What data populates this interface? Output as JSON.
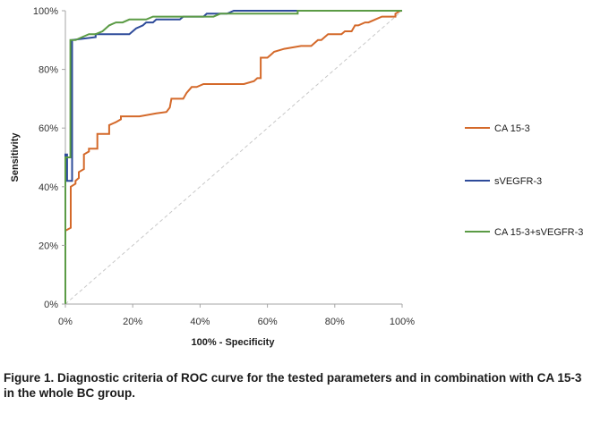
{
  "chart_data": {
    "type": "line",
    "xlabel": "100% - Specificity",
    "ylabel": "Sensitivity",
    "xlim": [
      0,
      100
    ],
    "ylim": [
      0,
      100
    ],
    "x_ticks": [
      "0%",
      "20%",
      "40%",
      "60%",
      "80%",
      "100%"
    ],
    "y_ticks": [
      "0%",
      "20%",
      "40%",
      "60%",
      "80%",
      "100%"
    ],
    "legend_position": "right",
    "reference_line": {
      "from": [
        0,
        0
      ],
      "to": [
        100,
        100
      ],
      "style": "dashed",
      "color": "#c8c8c8"
    },
    "series": [
      {
        "name": "CA 15-3",
        "color": "#d4692a",
        "points": [
          [
            0,
            0
          ],
          [
            0,
            25
          ],
          [
            1.6,
            26
          ],
          [
            1.6,
            40
          ],
          [
            3,
            41
          ],
          [
            3,
            42
          ],
          [
            4,
            43
          ],
          [
            4,
            45
          ],
          [
            5.5,
            46
          ],
          [
            5.5,
            51
          ],
          [
            7,
            52
          ],
          [
            7,
            53
          ],
          [
            9.5,
            53
          ],
          [
            9.5,
            58
          ],
          [
            13,
            58
          ],
          [
            13,
            61
          ],
          [
            15,
            62
          ],
          [
            16.5,
            63
          ],
          [
            16.5,
            64
          ],
          [
            22,
            64
          ],
          [
            27,
            65
          ],
          [
            30,
            65.5
          ],
          [
            31,
            67
          ],
          [
            31.5,
            70
          ],
          [
            35,
            70
          ],
          [
            36,
            72
          ],
          [
            37.5,
            74
          ],
          [
            39,
            74
          ],
          [
            41,
            75
          ],
          [
            53,
            75
          ],
          [
            56,
            76
          ],
          [
            57,
            77
          ],
          [
            58,
            77
          ],
          [
            58,
            84
          ],
          [
            60,
            84
          ],
          [
            61,
            85
          ],
          [
            62,
            86
          ],
          [
            65,
            87
          ],
          [
            70,
            88
          ],
          [
            73,
            88
          ],
          [
            75,
            90
          ],
          [
            76,
            90
          ],
          [
            77,
            91
          ],
          [
            78,
            92
          ],
          [
            82,
            92
          ],
          [
            83,
            93
          ],
          [
            85,
            93
          ],
          [
            86,
            95
          ],
          [
            87,
            95
          ],
          [
            89,
            96
          ],
          [
            90,
            96
          ],
          [
            92,
            97
          ],
          [
            94,
            98
          ],
          [
            98,
            98
          ],
          [
            98,
            99
          ],
          [
            99.5,
            100
          ]
        ]
      },
      {
        "name": "sVEGFR-3",
        "color": "#2e4b9a",
        "points": [
          [
            0,
            0
          ],
          [
            0,
            51
          ],
          [
            0.5,
            51
          ],
          [
            0.5,
            42
          ],
          [
            2,
            42
          ],
          [
            2,
            90
          ],
          [
            9,
            91
          ],
          [
            9,
            92
          ],
          [
            19,
            92
          ],
          [
            21,
            94
          ],
          [
            23,
            95
          ],
          [
            24,
            96
          ],
          [
            26,
            96
          ],
          [
            27,
            97
          ],
          [
            34,
            97
          ],
          [
            35,
            98
          ],
          [
            41,
            98
          ],
          [
            42,
            99
          ],
          [
            48,
            99
          ],
          [
            50,
            100
          ],
          [
            70,
            100
          ],
          [
            100,
            100
          ]
        ]
      },
      {
        "name": "CA 15-3+sVEGFR-3",
        "color": "#5b9b45",
        "points": [
          [
            0,
            0
          ],
          [
            0,
            50
          ],
          [
            1.5,
            50
          ],
          [
            1.5,
            90
          ],
          [
            3,
            90
          ],
          [
            5,
            91
          ],
          [
            7,
            92
          ],
          [
            9,
            92
          ],
          [
            11,
            93
          ],
          [
            13,
            95
          ],
          [
            15,
            96
          ],
          [
            17,
            96
          ],
          [
            19,
            97
          ],
          [
            24,
            97
          ],
          [
            26,
            98
          ],
          [
            30,
            98
          ],
          [
            44,
            98
          ],
          [
            46,
            99
          ],
          [
            50,
            99
          ],
          [
            69,
            99
          ],
          [
            69,
            100
          ],
          [
            100,
            100
          ]
        ]
      }
    ]
  },
  "caption": "Figure 1. Diagnostic criteria of ROC curve for the tested parameters and in combination with CA 15-3 in the whole BC group."
}
